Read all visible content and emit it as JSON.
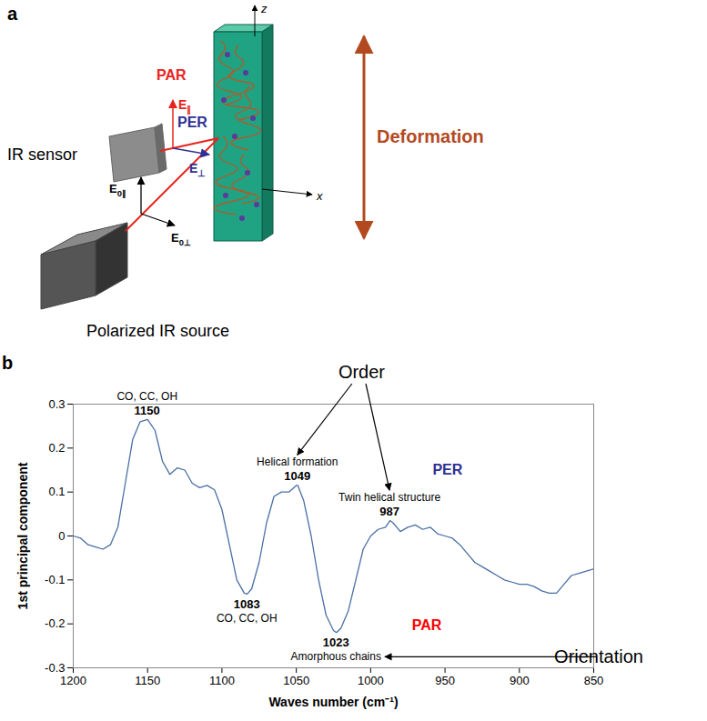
{
  "panel_a": {
    "letter": "a",
    "sensor": "IR sensor",
    "source": "Polarized IR source",
    "par": "PAR",
    "per": "PER",
    "e_par": "E∥",
    "e_per": "E⊥",
    "e0_par": "E0∥",
    "e0_per": "E0⊥",
    "deformation": "Deformation",
    "axis_z": "z",
    "axis_x": "x"
  },
  "chart_data": {
    "type": "line",
    "panel_label": "b",
    "x_label": "Waves number (cm⁻¹)",
    "y_label": "1st principal component",
    "color": "#4a6fa5",
    "x": [
      1200,
      1195,
      1190,
      1185,
      1180,
      1175,
      1170,
      1165,
      1160,
      1155,
      1150,
      1145,
      1140,
      1135,
      1130,
      1125,
      1120,
      1115,
      1110,
      1105,
      1100,
      1095,
      1090,
      1085,
      1083,
      1080,
      1075,
      1070,
      1065,
      1060,
      1055,
      1050,
      1049,
      1045,
      1040,
      1035,
      1030,
      1025,
      1023,
      1020,
      1015,
      1010,
      1005,
      1000,
      995,
      990,
      987,
      985,
      980,
      975,
      970,
      965,
      960,
      955,
      950,
      945,
      940,
      935,
      930,
      925,
      920,
      915,
      910,
      905,
      900,
      895,
      890,
      885,
      880,
      875,
      870,
      865,
      860,
      855,
      850
    ],
    "values": [
      0.0,
      -0.005,
      -0.02,
      -0.025,
      -0.03,
      -0.02,
      0.02,
      0.12,
      0.22,
      0.26,
      0.265,
      0.24,
      0.17,
      0.14,
      0.155,
      0.15,
      0.12,
      0.11,
      0.115,
      0.105,
      0.06,
      -0.02,
      -0.1,
      -0.13,
      -0.132,
      -0.12,
      -0.06,
      0.03,
      0.09,
      0.1,
      0.1,
      0.115,
      0.115,
      0.08,
      0.0,
      -0.1,
      -0.18,
      -0.215,
      -0.22,
      -0.21,
      -0.17,
      -0.1,
      -0.03,
      0.0,
      0.015,
      0.02,
      0.035,
      0.03,
      0.01,
      0.02,
      0.025,
      0.015,
      0.02,
      0.005,
      0.0,
      -0.005,
      -0.02,
      -0.04,
      -0.06,
      -0.07,
      -0.08,
      -0.09,
      -0.1,
      -0.105,
      -0.11,
      -0.11,
      -0.115,
      -0.125,
      -0.13,
      -0.13,
      -0.11,
      -0.09,
      -0.085,
      -0.08,
      -0.075
    ],
    "xlim": [
      1200,
      850
    ],
    "xticks": [
      1200,
      1150,
      1100,
      1050,
      1000,
      950,
      900,
      850
    ],
    "ylim": [
      -0.3,
      0.3
    ],
    "yticks": [
      -0.3,
      -0.2,
      -0.1,
      0,
      0.1,
      0.2,
      0.3
    ],
    "grid": false,
    "peaks": [
      {
        "x": 1150,
        "label": "1150",
        "note": "CO, CC, OH"
      },
      {
        "x": 1083,
        "label": "1083",
        "note": "CO, CC, OH"
      },
      {
        "x": 1049,
        "label": "1049",
        "note": "Helical formation"
      },
      {
        "x": 1023,
        "label": "1023",
        "note": "Amorphous chains"
      },
      {
        "x": 987,
        "label": "987",
        "note": "Twin helical structure"
      }
    ],
    "callouts": [
      {
        "text": "Order",
        "targets": [
          1049,
          987
        ]
      },
      {
        "text": "Orientation",
        "targets": [
          1023
        ]
      }
    ],
    "region_labels": [
      {
        "text": "PER",
        "color": "#2e3192"
      },
      {
        "text": "PAR",
        "color": "#ff0000"
      }
    ]
  }
}
